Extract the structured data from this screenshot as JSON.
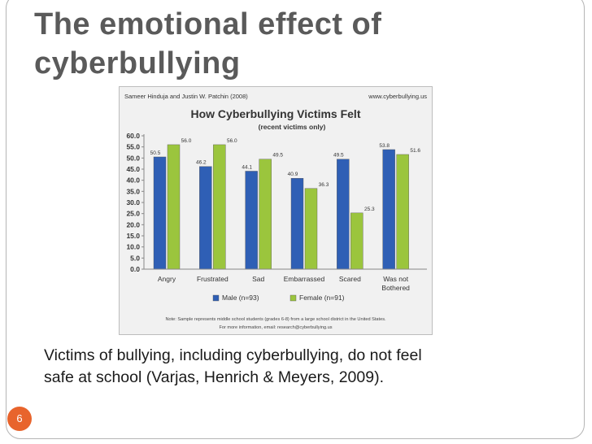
{
  "slide": {
    "title_line1": "The emotional effect of",
    "title_line2": "cyberbullying",
    "caption_line1": "Victims of bullying, including cyberbullying, do not feel",
    "caption_line2": "safe at school (Varjas, Henrich & Meyers, 2009).",
    "page_number": "6",
    "accent_color": "#e8642c"
  },
  "chart_data": {
    "type": "bar",
    "header_left": "Sameer Hinduja and Justin W. Patchin (2008)",
    "header_right": "www.cyberbullying.us",
    "title": "How Cyberbullying Victims Felt",
    "subtitle": "(recent victims only)",
    "categories": [
      "Angry",
      "Frustrated",
      "Sad",
      "Embarrassed",
      "Scared",
      "Was not Bothered"
    ],
    "series": [
      {
        "name": "Male (n=93)",
        "color": "#2f5fb5",
        "values": [
          50.5,
          46.2,
          44.1,
          40.9,
          49.5,
          53.8
        ]
      },
      {
        "name": "Female (n=91)",
        "color": "#9bc53d",
        "values": [
          56.0,
          56.0,
          49.5,
          36.3,
          25.3,
          51.6
        ]
      }
    ],
    "value_labels": {
      "Male (n=93)": [
        "50.5",
        "46.2",
        "44.1",
        "40.9",
        "49.5",
        "53.8"
      ],
      "Female (n=91)": [
        "56.0",
        "56.0",
        "49.5",
        "36.3",
        "25.3",
        "51.6"
      ]
    },
    "yticks": [
      "0.0",
      "5.0",
      "10.0",
      "15.0",
      "20.0",
      "25.0",
      "30.0",
      "35.0",
      "40.0",
      "45.0",
      "50.0",
      "55.0",
      "60.0"
    ],
    "ylim": [
      0,
      60
    ],
    "grid": false,
    "legend_position": "bottom",
    "note_line1": "Note: Sample represents middle school students (grades 6-8) from a large school district in the United States.",
    "note_line2": "For more information, email: research@cyberbullying.us"
  }
}
